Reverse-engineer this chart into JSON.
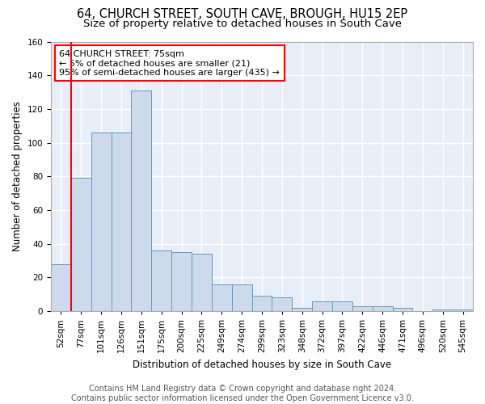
{
  "title": "64, CHURCH STREET, SOUTH CAVE, BROUGH, HU15 2EP",
  "subtitle": "Size of property relative to detached houses in South Cave",
  "xlabel": "Distribution of detached houses by size in South Cave",
  "ylabel": "Number of detached properties",
  "bar_labels": [
    "52sqm",
    "77sqm",
    "101sqm",
    "126sqm",
    "151sqm",
    "175sqm",
    "200sqm",
    "225sqm",
    "249sqm",
    "274sqm",
    "299sqm",
    "323sqm",
    "348sqm",
    "372sqm",
    "397sqm",
    "422sqm",
    "446sqm",
    "471sqm",
    "496sqm",
    "520sqm",
    "545sqm"
  ],
  "bar_values": [
    28,
    79,
    106,
    106,
    131,
    36,
    35,
    34,
    16,
    16,
    9,
    8,
    2,
    6,
    6,
    3,
    3,
    2,
    0,
    1,
    1
  ],
  "bar_color": "#ccdaeb",
  "bar_edge_color": "#6699bb",
  "annotation_box_text": "64 CHURCH STREET: 75sqm\n← 5% of detached houses are smaller (21)\n95% of semi-detached houses are larger (435) →",
  "annotation_box_color": "white",
  "annotation_box_edge_color": "red",
  "red_line_color": "red",
  "ylim": [
    0,
    160
  ],
  "yticks": [
    0,
    20,
    40,
    60,
    80,
    100,
    120,
    140,
    160
  ],
  "background_color": "#e8eef8",
  "grid_color": "white",
  "footer_text": "Contains HM Land Registry data © Crown copyright and database right 2024.\nContains public sector information licensed under the Open Government Licence v3.0.",
  "title_fontsize": 10.5,
  "subtitle_fontsize": 9.5,
  "xlabel_fontsize": 8.5,
  "ylabel_fontsize": 8.5,
  "footer_fontsize": 7,
  "tick_fontsize": 7.5,
  "annot_fontsize": 8
}
